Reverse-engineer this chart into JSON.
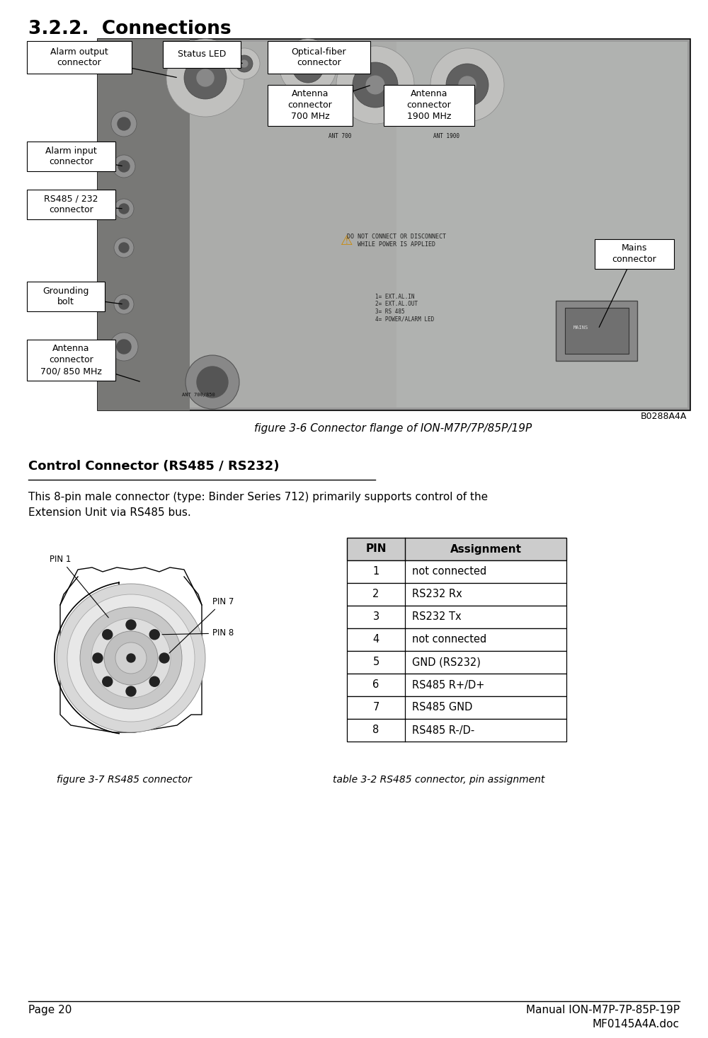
{
  "title": "3.2.2.  Connections",
  "page_num": "Page 20",
  "manual_ref": "Manual ION-M7P-7P-85P-19P\nMF0145A4A.doc",
  "fig6_caption": "figure 3-6 Connector flange of ION-M7P/7P/85P/19P",
  "fig7_caption": "figure 3-7 RS485 connector",
  "table_caption": "table 3-2 RS485 connector, pin assignment",
  "section_title": "Control Connector (RS485 / RS232)",
  "body_text": "This 8-pin male connector (type: Binder Series 712) primarily supports control of the\nExtension Unit via RS485 bus.",
  "image_label": "B0288A4A",
  "table_headers": [
    "PIN",
    "Assignment"
  ],
  "table_rows": [
    [
      "1",
      "not connected"
    ],
    [
      "2",
      "RS232 Rx"
    ],
    [
      "3",
      "RS232 Tx"
    ],
    [
      "4",
      "not connected"
    ],
    [
      "5",
      "GND (RS232)"
    ],
    [
      "6",
      "RS485 R+/D+"
    ],
    [
      "7",
      "RS485 GND"
    ],
    [
      "8",
      "RS485 R-/D-"
    ]
  ],
  "bg_color": "#ffffff",
  "text_color": "#000000"
}
